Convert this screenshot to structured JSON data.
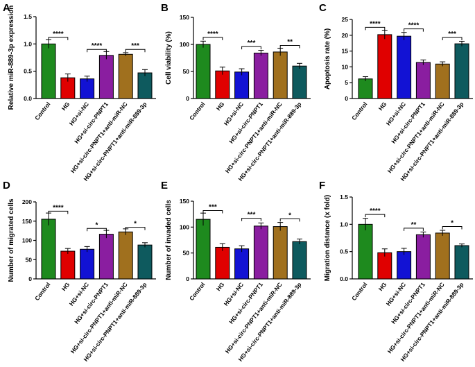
{
  "colors": [
    "#1e8a1e",
    "#e00000",
    "#1212d4",
    "#8a1ea0",
    "#a0701e",
    "#0e5a5e"
  ],
  "chart_data": [
    {
      "type": "bar",
      "panel": "A",
      "ylabel": "Relative miR-889-3p expression",
      "categories": [
        "Control",
        "HG",
        "HG+si-NC",
        "HG+si-circ-PNPT1",
        "HG+si-circ-PNPT1+anti-miR-NC",
        "HG+si-circ-PNPT1+anti-miR-889-3p"
      ],
      "values": [
        1.0,
        0.38,
        0.36,
        0.79,
        0.81,
        0.47
      ],
      "errors": [
        0.08,
        0.07,
        0.05,
        0.07,
        0.03,
        0.06
      ],
      "ylim": [
        0,
        1.5
      ],
      "yticks": [
        0.0,
        0.5,
        1.0,
        1.5
      ],
      "tick_labels": [
        "0.0",
        "0.5",
        "1.0",
        "1.5"
      ],
      "sig": [
        {
          "from": 0,
          "to": 1,
          "y": 1.12,
          "label": "****"
        },
        {
          "from": 2,
          "to": 3,
          "y": 0.9,
          "label": "****"
        },
        {
          "from": 4,
          "to": 5,
          "y": 0.9,
          "label": "***"
        }
      ]
    },
    {
      "type": "bar",
      "panel": "B",
      "ylabel": "Cell viability (%)",
      "categories": [
        "Control",
        "HG",
        "HG+si-NC",
        "HG+si-circ-PNPT1",
        "HG+si-circ-PNPT1+anti-miR-NC",
        "HG+si-circ-PNPT1+anti-miR-889-3p"
      ],
      "values": [
        100,
        51,
        49,
        84,
        86,
        60
      ],
      "errors": [
        6,
        7,
        6,
        5,
        7,
        5
      ],
      "ylim": [
        0,
        150
      ],
      "yticks": [
        0,
        50,
        100,
        150
      ],
      "tick_labels": [
        "0",
        "50",
        "100",
        "150"
      ],
      "sig": [
        {
          "from": 0,
          "to": 1,
          "y": 113,
          "label": "****"
        },
        {
          "from": 2,
          "to": 3,
          "y": 96,
          "label": "***"
        },
        {
          "from": 4,
          "to": 5,
          "y": 98,
          "label": "**"
        }
      ]
    },
    {
      "type": "bar",
      "panel": "C",
      "ylabel": "Apoptosis rate (%)",
      "categories": [
        "Control",
        "HG",
        "HG+si-NC",
        "HG+si-circ-PNPT1",
        "HG+si-circ-PNPT1+anti-miR-NC",
        "HG+si-circ-PNPT1+anti-miR-889-3p"
      ],
      "values": [
        6.2,
        20.2,
        19.7,
        11.4,
        10.9,
        17.3
      ],
      "errors": [
        0.7,
        1.4,
        1.2,
        0.8,
        0.7,
        0.8
      ],
      "ylim": [
        0,
        25
      ],
      "yticks": [
        0,
        5,
        10,
        15,
        20,
        25
      ],
      "tick_labels": [
        "0",
        "5",
        "10",
        "15",
        "20",
        "25"
      ],
      "sig": [
        {
          "from": 0,
          "to": 1,
          "y": 22.5,
          "label": "****"
        },
        {
          "from": 2,
          "to": 3,
          "y": 22.0,
          "label": "****"
        },
        {
          "from": 4,
          "to": 5,
          "y": 19.3,
          "label": "***"
        }
      ]
    },
    {
      "type": "bar",
      "panel": "D",
      "ylabel": "Number of migrated cells",
      "categories": [
        "Control",
        "HG",
        "HG+si-NC",
        "HG+si-circ-PNPT1",
        "HG+si-circ-PNPT1+anti-miR-NC",
        "HG+si-circ-PNPT1+anti-miR-889-3p"
      ],
      "values": [
        155,
        72,
        77,
        116,
        122,
        88
      ],
      "errors": [
        16,
        7,
        7,
        10,
        8,
        6
      ],
      "ylim": [
        0,
        200
      ],
      "yticks": [
        0,
        50,
        100,
        150,
        200
      ],
      "tick_labels": [
        "0",
        "50",
        "100",
        "150",
        "200"
      ],
      "sig": [
        {
          "from": 0,
          "to": 1,
          "y": 176,
          "label": "****"
        },
        {
          "from": 2,
          "to": 3,
          "y": 131,
          "label": "*"
        },
        {
          "from": 4,
          "to": 5,
          "y": 134,
          "label": "*"
        }
      ]
    },
    {
      "type": "bar",
      "panel": "E",
      "ylabel": "Number of invaded cells",
      "categories": [
        "Control",
        "HG",
        "HG+si-NC",
        "HG+si-circ-PNPT1",
        "HG+si-circ-PNPT1+anti-miR-NC",
        "HG+si-circ-PNPT1+anti-miR-889-3p"
      ],
      "values": [
        115,
        61,
        58,
        102,
        101,
        72
      ],
      "errors": [
        12,
        7,
        6,
        6,
        8,
        5
      ],
      "ylim": [
        0,
        150
      ],
      "yticks": [
        0,
        50,
        100,
        150
      ],
      "tick_labels": [
        "0",
        "50",
        "100",
        "150"
      ],
      "sig": [
        {
          "from": 0,
          "to": 1,
          "y": 132,
          "label": "***"
        },
        {
          "from": 2,
          "to": 3,
          "y": 117,
          "label": "***"
        },
        {
          "from": 4,
          "to": 5,
          "y": 116,
          "label": "*"
        }
      ]
    },
    {
      "type": "bar",
      "panel": "F",
      "ylabel": "Migration distance (x fold)",
      "categories": [
        "Control",
        "HG",
        "HG+si-NC",
        "HG+si-circ-PNPT1",
        "HG+si-circ-PNPT1+anti-miR-NC",
        "HG+si-circ-PNPT1+anti-miR-889-3p"
      ],
      "values": [
        1.0,
        0.48,
        0.5,
        0.81,
        0.84,
        0.61
      ],
      "errors": [
        0.11,
        0.07,
        0.06,
        0.05,
        0.05,
        0.03
      ],
      "ylim": [
        0,
        1.5
      ],
      "yticks": [
        0.0,
        0.5,
        1.0,
        1.5
      ],
      "tick_labels": [
        "0.0",
        "0.5",
        "1.0",
        "1.5"
      ],
      "sig": [
        {
          "from": 0,
          "to": 1,
          "y": 1.18,
          "label": "****"
        },
        {
          "from": 2,
          "to": 3,
          "y": 0.93,
          "label": "**"
        },
        {
          "from": 4,
          "to": 5,
          "y": 0.96,
          "label": "*"
        }
      ]
    }
  ]
}
